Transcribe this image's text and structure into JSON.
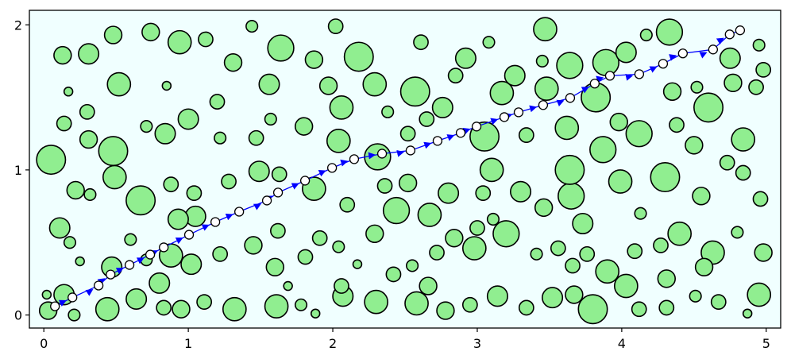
{
  "chart_data": {
    "type": "scatter",
    "xlim": [
      -0.1,
      5.1
    ],
    "ylim": [
      -0.09,
      2.1
    ],
    "xticks": [
      0,
      1,
      2,
      3,
      4,
      5
    ],
    "yticks": [
      0,
      1,
      2
    ],
    "background": "#f0ffff",
    "series": [
      {
        "kind": "obstacles",
        "color": "#90ee90",
        "edgecolor": "#000000",
        "x": [
          0.03,
          0.21,
          0.44,
          0.64,
          0.83,
          0.95,
          1.11,
          1.32,
          1.61,
          1.78,
          1.88,
          2.07,
          2.3,
          2.58,
          2.78,
          2.95,
          3.14,
          3.34,
          3.52,
          3.8,
          4.03,
          4.12,
          4.31,
          4.51,
          4.67,
          4.95,
          4.87,
          0.14,
          0.02,
          0.8,
          0.47,
          0.11,
          0.18,
          0.25,
          0.6,
          0.71,
          0.88,
          1.02,
          1.05,
          0.93,
          1.22,
          1.45,
          1.6,
          1.62,
          1.69,
          1.81,
          1.91,
          2.04,
          2.06,
          2.17,
          2.29,
          2.42,
          2.55,
          2.66,
          2.72,
          2.84,
          2.98,
          3.0,
          3.04,
          3.11,
          3.2,
          3.41,
          3.56,
          3.66,
          3.76,
          3.9,
          4.09,
          4.27,
          4.4,
          4.63,
          4.8,
          4.98,
          4.57,
          4.31,
          3.67,
          0.22,
          0.32,
          0.49,
          0.67,
          0.88,
          1.04,
          1.28,
          1.49,
          1.63,
          1.87,
          2.1,
          2.44,
          2.52,
          2.67,
          2.8,
          3.1,
          3.3,
          3.46,
          3.65,
          3.73,
          3.99,
          4.13,
          4.3,
          4.55,
          4.84,
          4.96,
          3.64,
          2.36,
          0.05,
          0.31,
          0.48,
          0.71,
          0.84,
          1.0,
          1.22,
          1.47,
          1.57,
          1.8,
          2.04,
          2.06,
          2.31,
          2.52,
          2.65,
          2.57,
          2.76,
          3.05,
          3.17,
          3.34,
          3.48,
          3.62,
          3.82,
          3.87,
          3.98,
          4.12,
          4.38,
          4.6,
          4.5,
          4.84,
          4.73,
          0.14,
          0.3,
          1.2,
          0.13,
          0.31,
          0.48,
          0.52,
          0.74,
          0.94,
          1.12,
          1.31,
          1.56,
          1.64,
          1.87,
          1.97,
          2.18,
          2.29,
          2.38,
          2.61,
          2.85,
          2.92,
          3.08,
          3.26,
          3.47,
          3.45,
          3.64,
          3.89,
          4.03,
          4.17,
          4.33,
          4.35,
          4.52,
          4.75,
          4.77,
          4.93,
          4.98,
          4.95,
          0.17,
          0.85,
          2.02,
          1.44
        ],
        "y": [
          0.03,
          0.0,
          0.04,
          0.11,
          0.05,
          0.04,
          0.09,
          0.04,
          0.06,
          0.07,
          0.01,
          0.13,
          0.09,
          0.08,
          0.03,
          0.07,
          0.13,
          0.05,
          0.12,
          0.04,
          0.2,
          0.04,
          0.05,
          0.13,
          0.09,
          0.14,
          0.01,
          0.14,
          0.14,
          0.22,
          0.33,
          0.6,
          0.5,
          0.37,
          0.52,
          0.38,
          0.41,
          0.35,
          0.68,
          0.66,
          0.42,
          0.48,
          0.33,
          0.58,
          0.2,
          0.4,
          0.53,
          0.47,
          0.2,
          0.35,
          0.56,
          0.28,
          0.34,
          0.2,
          0.43,
          0.53,
          0.46,
          0.6,
          0.84,
          0.66,
          0.56,
          0.42,
          0.46,
          0.34,
          0.42,
          0.3,
          0.44,
          0.48,
          0.56,
          0.43,
          0.57,
          0.43,
          0.33,
          0.25,
          0.14,
          0.86,
          0.83,
          0.95,
          0.79,
          0.9,
          0.84,
          0.92,
          0.99,
          0.97,
          0.87,
          0.76,
          0.72,
          0.91,
          0.69,
          0.84,
          1.0,
          0.85,
          0.74,
          0.82,
          0.63,
          0.92,
          0.7,
          0.95,
          0.82,
          0.98,
          0.8,
          1.0,
          0.89,
          1.07,
          1.21,
          1.13,
          1.3,
          1.25,
          1.35,
          1.22,
          1.22,
          1.35,
          1.3,
          1.2,
          1.43,
          1.09,
          1.25,
          1.35,
          1.54,
          1.43,
          1.23,
          1.53,
          1.24,
          1.56,
          1.29,
          1.5,
          1.14,
          1.33,
          1.25,
          1.31,
          1.43,
          1.17,
          1.21,
          1.05,
          1.32,
          1.4,
          1.47,
          1.79,
          1.8,
          1.93,
          1.59,
          1.95,
          1.88,
          1.9,
          1.74,
          1.59,
          1.84,
          1.76,
          1.58,
          1.78,
          1.59,
          1.4,
          1.88,
          1.65,
          1.77,
          1.88,
          1.65,
          1.97,
          1.75,
          1.72,
          1.74,
          1.81,
          1.93,
          1.95,
          1.54,
          1.57,
          1.77,
          1.6,
          1.57,
          1.69,
          1.86,
          1.54,
          1.58,
          1.99,
          1.99
        ],
        "r": [
          0.06,
          0.04,
          0.08,
          0.07,
          0.05,
          0.06,
          0.05,
          0.08,
          0.08,
          0.04,
          0.03,
          0.07,
          0.08,
          0.08,
          0.06,
          0.05,
          0.07,
          0.05,
          0.07,
          0.1,
          0.08,
          0.05,
          0.05,
          0.04,
          0.05,
          0.08,
          0.03,
          0.07,
          0.03,
          0.07,
          0.07,
          0.07,
          0.04,
          0.03,
          0.04,
          0.04,
          0.08,
          0.07,
          0.07,
          0.07,
          0.05,
          0.06,
          0.06,
          0.05,
          0.03,
          0.05,
          0.05,
          0.04,
          0.05,
          0.03,
          0.06,
          0.05,
          0.04,
          0.06,
          0.05,
          0.06,
          0.08,
          0.05,
          0.05,
          0.04,
          0.09,
          0.04,
          0.05,
          0.05,
          0.05,
          0.08,
          0.05,
          0.05,
          0.08,
          0.08,
          0.04,
          0.06,
          0.06,
          0.06,
          0.06,
          0.06,
          0.04,
          0.08,
          0.1,
          0.05,
          0.05,
          0.05,
          0.07,
          0.05,
          0.08,
          0.05,
          0.09,
          0.06,
          0.08,
          0.07,
          0.08,
          0.07,
          0.06,
          0.09,
          0.07,
          0.08,
          0.04,
          0.1,
          0.06,
          0.05,
          0.05,
          0.1,
          0.05,
          0.1,
          0.06,
          0.1,
          0.04,
          0.07,
          0.07,
          0.04,
          0.05,
          0.04,
          0.06,
          0.08,
          0.08,
          0.09,
          0.05,
          0.05,
          0.1,
          0.07,
          0.1,
          0.08,
          0.05,
          0.08,
          0.08,
          0.1,
          0.09,
          0.06,
          0.09,
          0.05,
          0.1,
          0.06,
          0.08,
          0.05,
          0.05,
          0.05,
          0.05,
          0.06,
          0.07,
          0.06,
          0.08,
          0.06,
          0.08,
          0.05,
          0.06,
          0.07,
          0.09,
          0.06,
          0.06,
          0.1,
          0.08,
          0.04,
          0.05,
          0.05,
          0.07,
          0.04,
          0.07,
          0.08,
          0.04,
          0.09,
          0.09,
          0.07,
          0.04,
          0.09,
          0.06,
          0.04,
          0.07,
          0.06,
          0.05,
          0.05,
          0.04,
          0.03,
          0.03,
          0.05,
          0.04
        ]
      },
      {
        "kind": "path",
        "color": "#0000ff",
        "marker_color": "#ffffff",
        "x": [
          0.077,
          0.198,
          0.379,
          0.462,
          0.593,
          0.736,
          0.83,
          1.005,
          1.187,
          1.352,
          1.544,
          1.621,
          1.808,
          1.995,
          2.148,
          2.341,
          2.538,
          2.725,
          2.885,
          2.995,
          3.187,
          3.286,
          3.456,
          3.643,
          3.813,
          3.918,
          4.121,
          4.286,
          4.423,
          4.632,
          4.747,
          4.819
        ],
        "y": [
          0.06,
          0.121,
          0.203,
          0.279,
          0.345,
          0.416,
          0.466,
          0.553,
          0.641,
          0.712,
          0.789,
          0.844,
          0.926,
          1.014,
          1.074,
          1.112,
          1.134,
          1.2,
          1.255,
          1.299,
          1.364,
          1.397,
          1.447,
          1.496,
          1.595,
          1.649,
          1.66,
          1.732,
          1.803,
          1.83,
          1.934,
          1.962
        ]
      }
    ]
  }
}
